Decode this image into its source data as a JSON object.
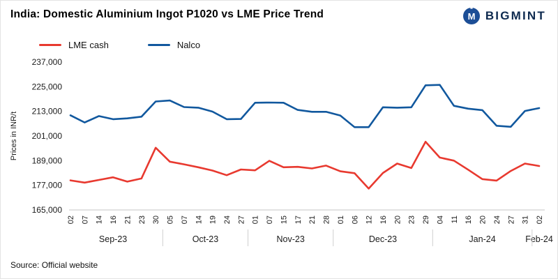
{
  "header": {
    "title": "India: Domestic Aluminium Ingot P1020 vs LME Price Trend",
    "logo_text": "BIGMINT",
    "logo_monogram": "M",
    "logo_color": "#1c4e96"
  },
  "source": "Source: Official website",
  "chart_data": {
    "type": "line",
    "title": "India: Domestic Aluminium Ingot P1020 vs LME Price Trend",
    "ylabel": "Prices in INR/t",
    "xlabel": "",
    "ylim": [
      165000,
      237000
    ],
    "ytick_step": 12000,
    "grid": false,
    "legend_position": "top-left",
    "x": [
      "02",
      "07",
      "14",
      "16",
      "21",
      "23",
      "30",
      "05",
      "07",
      "14",
      "19",
      "24",
      "27",
      "01",
      "07",
      "15",
      "17",
      "21",
      "28",
      "01",
      "06",
      "12",
      "16",
      "20",
      "23",
      "29",
      "04",
      "11",
      "16",
      "20",
      "24",
      "27",
      "31",
      "02"
    ],
    "months": [
      {
        "label": "Sep-23",
        "ticks": 7
      },
      {
        "label": "Oct-23",
        "ticks": 6
      },
      {
        "label": "Nov-23",
        "ticks": 6
      },
      {
        "label": "Dec-23",
        "ticks": 7
      },
      {
        "label": "Jan-24",
        "ticks": 7
      },
      {
        "label": "Feb-24",
        "ticks": 1
      }
    ],
    "series": [
      {
        "name": "LME cash",
        "color": "#e8392f",
        "values": [
          179400,
          178300,
          179600,
          180900,
          178800,
          180300,
          195300,
          188500,
          187200,
          185800,
          184200,
          181900,
          184700,
          184300,
          188900,
          185800,
          186000,
          185200,
          186600,
          183800,
          182900,
          175400,
          183000,
          187600,
          185400,
          198200,
          190500,
          189000,
          184600,
          180000,
          179300,
          184000,
          187600,
          186400
        ]
      },
      {
        "name": "Nalco",
        "color": "#11589e",
        "values": [
          211100,
          207600,
          210700,
          209200,
          209600,
          210400,
          217800,
          218300,
          215100,
          214800,
          212900,
          209200,
          209300,
          217200,
          217300,
          217200,
          213700,
          212800,
          212800,
          211000,
          205300,
          205300,
          215000,
          214800,
          215000,
          225700,
          225900,
          215700,
          214300,
          213600,
          206000,
          205500,
          213200,
          214600
        ]
      }
    ]
  }
}
